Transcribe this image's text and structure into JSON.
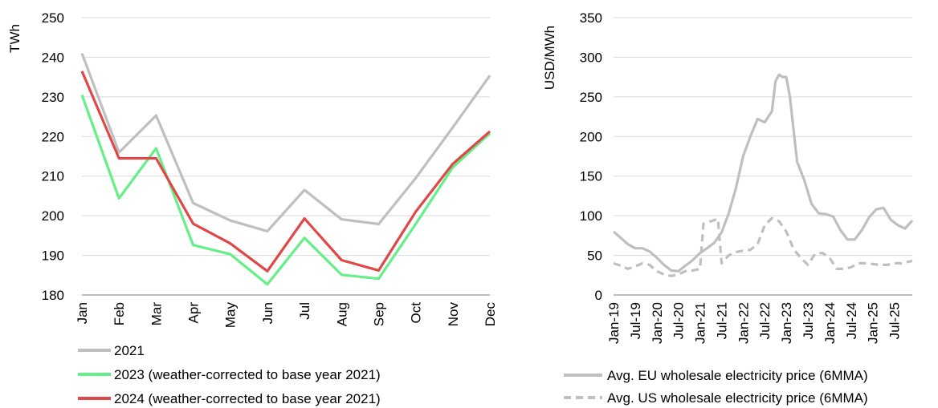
{
  "chart_data": [
    {
      "type": "line",
      "ylabel": "TWh",
      "ylim": [
        180,
        250
      ],
      "yticks": [
        180,
        190,
        200,
        210,
        220,
        230,
        240,
        250
      ],
      "categories": [
        "Jan",
        "Feb",
        "Mar",
        "Apr",
        "May",
        "Jun",
        "Jul",
        "Aug",
        "Sep",
        "Oct",
        "Nov",
        "Dec"
      ],
      "grid": "horizontal",
      "legend_position": "bottom-left",
      "series": [
        {
          "name": "2021",
          "color": "#bfbfbf",
          "style": "solid",
          "values": [
            241,
            216,
            225.3,
            203.2,
            198.8,
            196.1,
            206.5,
            199.1,
            197.9,
            209.5,
            222.3,
            235.4
          ]
        },
        {
          "name": "2023 (weather-corrected to base year 2021)",
          "color": "#66ee88",
          "style": "solid",
          "values": [
            230.5,
            204.4,
            217,
            192.6,
            190.3,
            182.7,
            194.4,
            185.1,
            184.1,
            197.9,
            212.2,
            220.8
          ]
        },
        {
          "name": "2024 (weather-corrected to base year 2021)",
          "color": "#e04848",
          "style": "solid",
          "values": [
            236.5,
            214.5,
            214.5,
            198,
            193,
            186,
            199.3,
            188.8,
            186.2,
            201,
            213.1,
            221.3
          ]
        }
      ]
    },
    {
      "type": "line",
      "ylabel": "USD/MWh",
      "ylim": [
        0,
        350
      ],
      "yticks": [
        0,
        50,
        100,
        150,
        200,
        250,
        300,
        350
      ],
      "xlim": [
        "2019-01",
        "2025-12"
      ],
      "xtick_labels": [
        "Jan-19",
        "Jul-19",
        "Jan-20",
        "Jul-20",
        "Jan-21",
        "Jul-21",
        "Jan-22",
        "Jul-22",
        "Jan-23",
        "Jul-23",
        "Jan-24",
        "Jul-24",
        "Jan-25",
        "Jul-25"
      ],
      "grid": "horizontal",
      "legend_position": "bottom-right",
      "series": [
        {
          "name": "Avg. EU wholesale electricity price (6MMA)",
          "color": "#bfbfbf",
          "style": "solid",
          "points": [
            [
              "2019-01",
              80
            ],
            [
              "2019-03",
              72
            ],
            [
              "2019-05",
              64
            ],
            [
              "2019-07",
              59
            ],
            [
              "2019-09",
              59
            ],
            [
              "2019-11",
              55
            ],
            [
              "2020-01",
              47
            ],
            [
              "2020-03",
              38
            ],
            [
              "2020-05",
              31
            ],
            [
              "2020-07",
              30
            ],
            [
              "2020-09",
              37
            ],
            [
              "2020-11",
              44
            ],
            [
              "2021-01",
              53
            ],
            [
              "2021-03",
              59
            ],
            [
              "2021-05",
              66
            ],
            [
              "2021-07",
              79
            ],
            [
              "2021-09",
              103
            ],
            [
              "2021-11",
              135
            ],
            [
              "2022-01",
              175
            ],
            [
              "2022-03",
              200
            ],
            [
              "2022-05",
              222
            ],
            [
              "2022-07",
              218
            ],
            [
              "2022-09",
              232
            ],
            [
              "2022-10",
              270
            ],
            [
              "2022-11",
              278
            ],
            [
              "2022-12",
              275
            ],
            [
              "2023-01",
              275
            ],
            [
              "2023-02",
              250
            ],
            [
              "2023-04",
              168
            ],
            [
              "2023-06",
              145
            ],
            [
              "2023-08",
              115
            ],
            [
              "2023-10",
              103
            ],
            [
              "2023-12",
              102
            ],
            [
              "2024-02",
              99
            ],
            [
              "2024-04",
              82
            ],
            [
              "2024-06",
              70
            ],
            [
              "2024-08",
              70
            ],
            [
              "2024-10",
              82
            ],
            [
              "2024-12",
              98
            ],
            [
              "2025-02",
              108
            ],
            [
              "2025-04",
              110
            ],
            [
              "2025-06",
              95
            ],
            [
              "2025-08",
              88
            ],
            [
              "2025-10",
              84
            ],
            [
              "2025-12",
              94
            ]
          ]
        },
        {
          "name": "Avg. US wholesale electricity price (6MMA)",
          "color": "#bfbfbf",
          "style": "dashed",
          "points": [
            [
              "2019-01",
              40
            ],
            [
              "2019-03",
              37
            ],
            [
              "2019-05",
              33
            ],
            [
              "2019-07",
              36
            ],
            [
              "2019-09",
              40
            ],
            [
              "2019-11",
              38
            ],
            [
              "2020-01",
              30
            ],
            [
              "2020-03",
              26
            ],
            [
              "2020-05",
              24
            ],
            [
              "2020-07",
              26
            ],
            [
              "2020-09",
              30
            ],
            [
              "2020-11",
              31
            ],
            [
              "2021-01",
              33
            ],
            [
              "2021-02",
              90
            ],
            [
              "2021-04",
              93
            ],
            [
              "2021-06",
              96
            ],
            [
              "2021-07",
              40
            ],
            [
              "2021-09",
              50
            ],
            [
              "2021-11",
              54
            ],
            [
              "2022-01",
              56
            ],
            [
              "2022-03",
              57
            ],
            [
              "2022-05",
              64
            ],
            [
              "2022-07",
              88
            ],
            [
              "2022-09",
              97
            ],
            [
              "2022-11",
              93
            ],
            [
              "2023-01",
              80
            ],
            [
              "2023-03",
              58
            ],
            [
              "2023-05",
              47
            ],
            [
              "2023-07",
              38
            ],
            [
              "2023-09",
              52
            ],
            [
              "2023-11",
              53
            ],
            [
              "2024-01",
              47
            ],
            [
              "2024-03",
              33
            ],
            [
              "2024-05",
              33
            ],
            [
              "2024-07",
              35
            ],
            [
              "2024-09",
              40
            ],
            [
              "2024-11",
              40
            ],
            [
              "2025-01",
              39
            ],
            [
              "2025-03",
              38
            ],
            [
              "2025-05",
              38
            ],
            [
              "2025-07",
              40
            ],
            [
              "2025-09",
              40
            ],
            [
              "2025-12",
              43
            ]
          ]
        }
      ]
    }
  ]
}
